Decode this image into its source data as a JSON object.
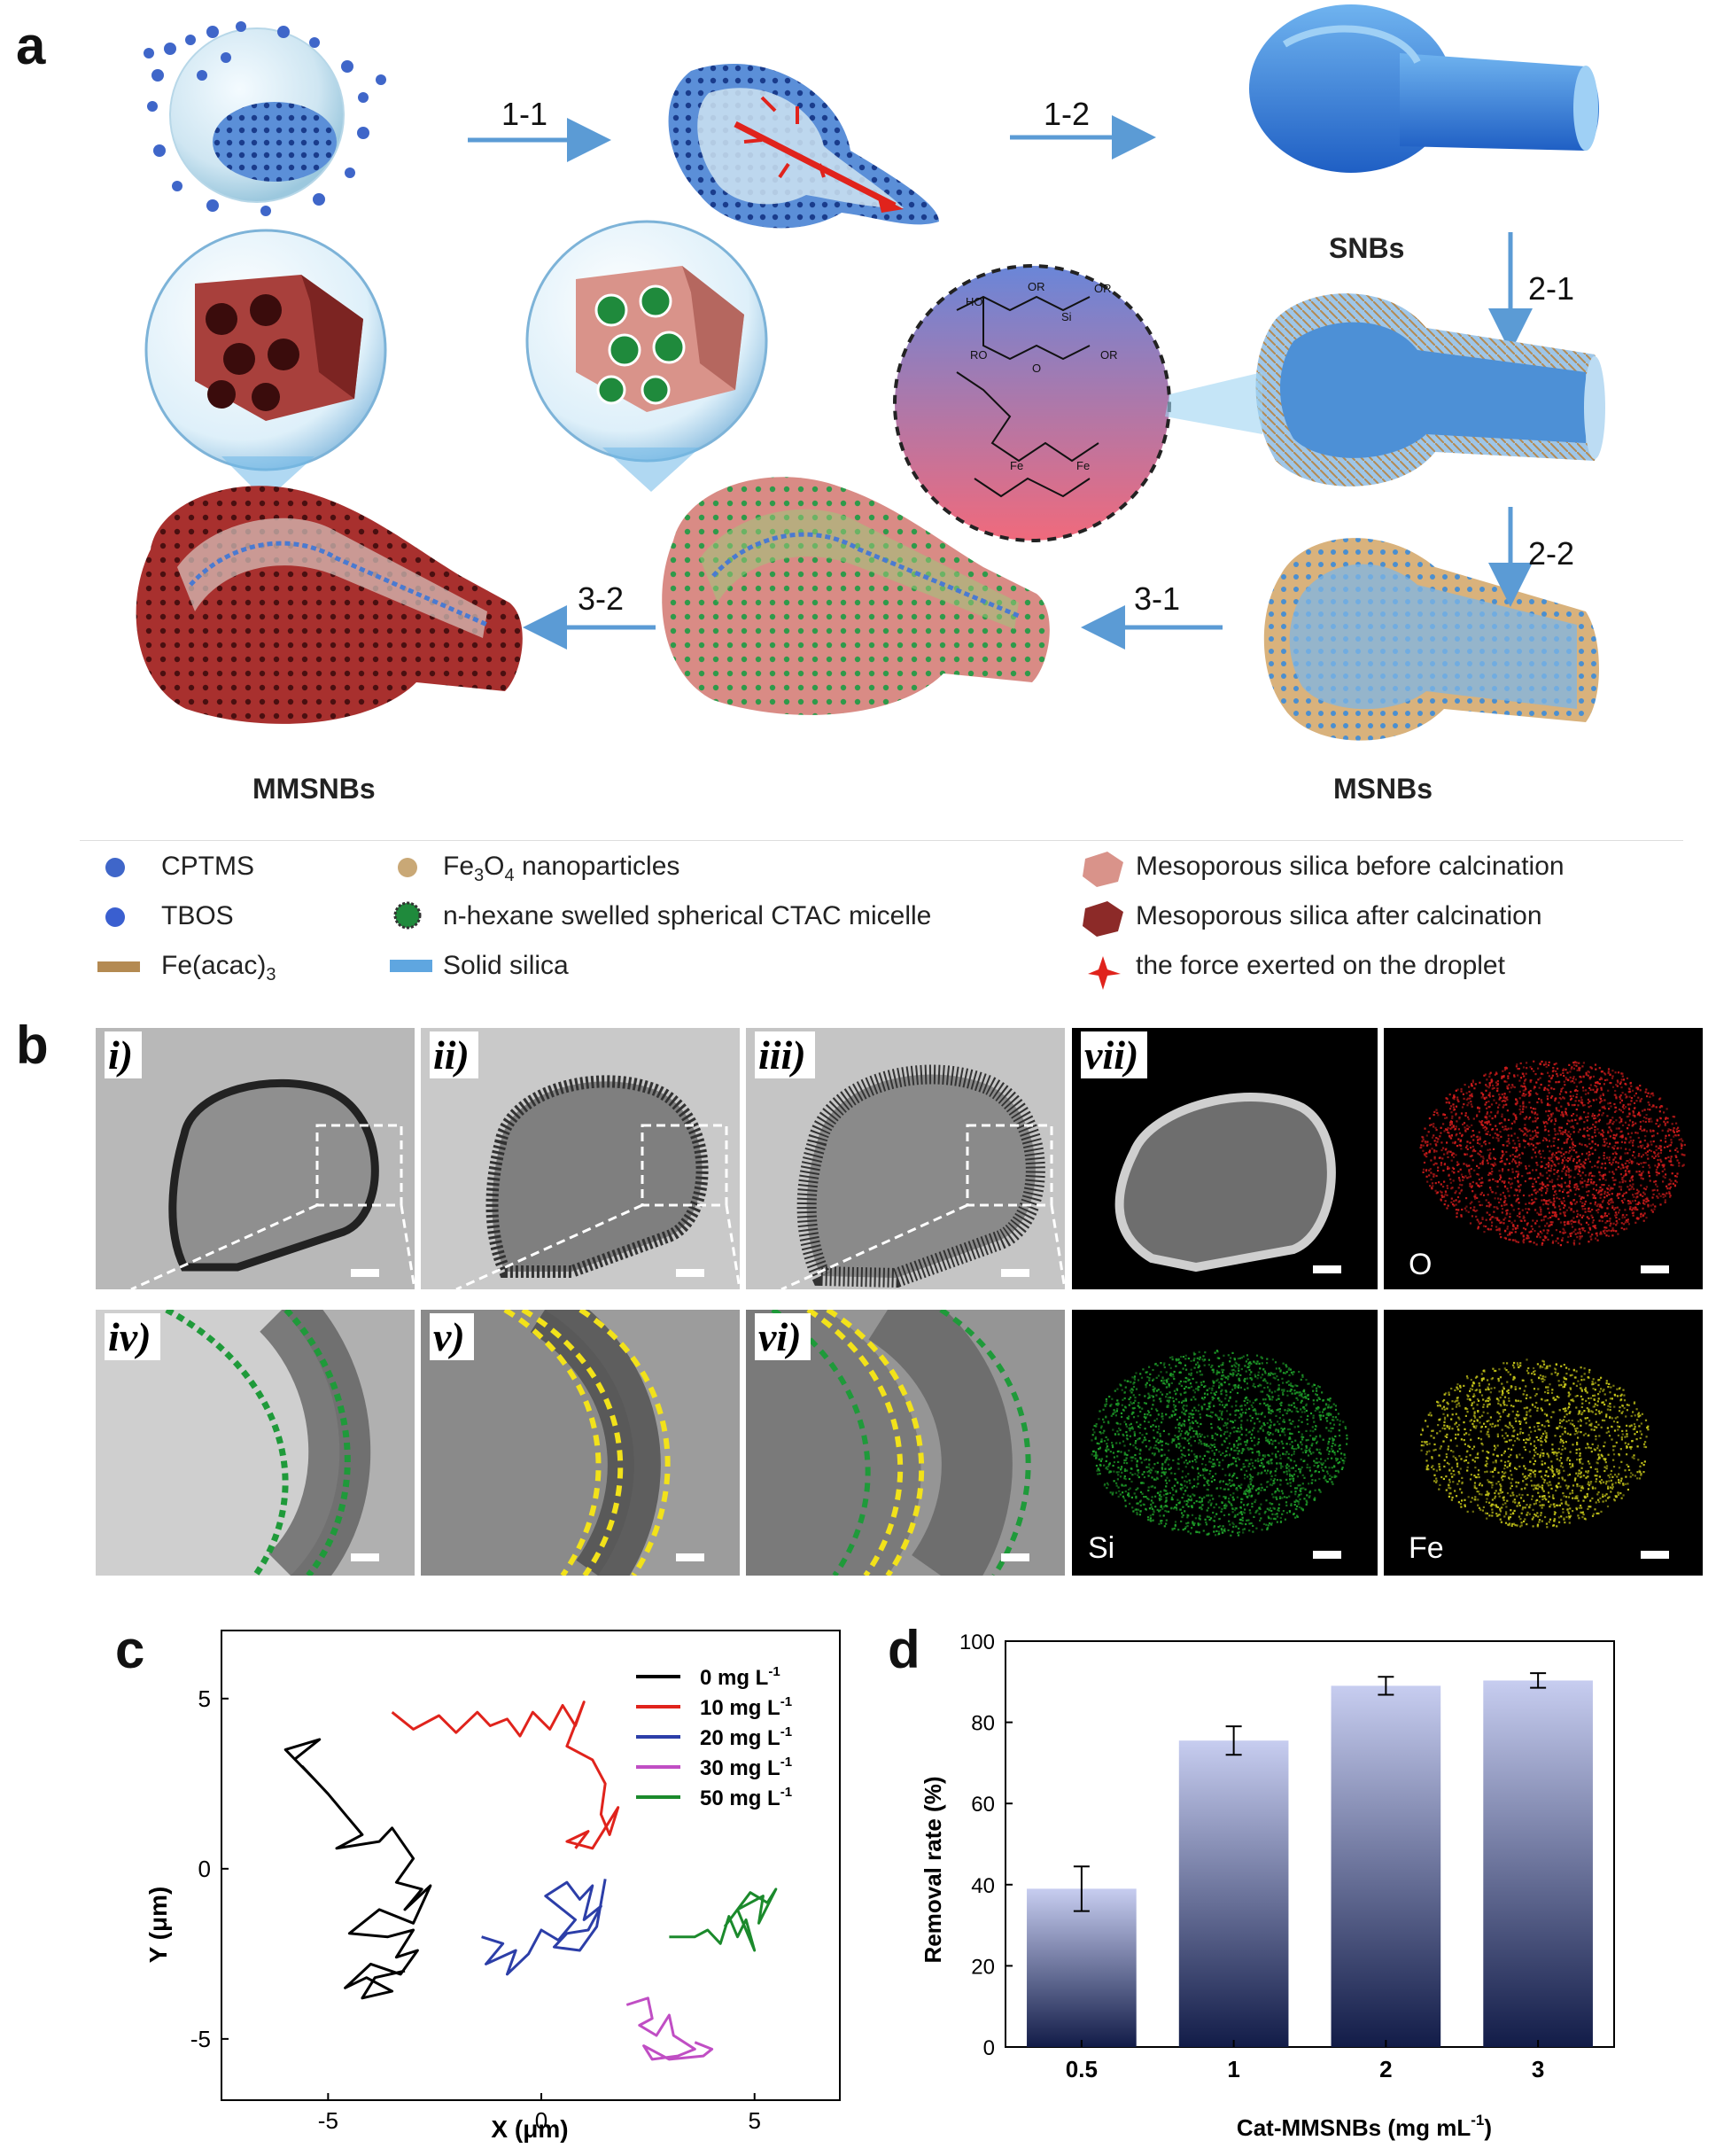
{
  "panels": {
    "a": "a",
    "b": "b",
    "c": "c",
    "d": "d"
  },
  "panel_a": {
    "steps": {
      "s11": "1-1",
      "s12": "1-2",
      "s21": "2-1",
      "s22": "2-2",
      "s31": "3-1",
      "s32": "3-2"
    },
    "labels": {
      "snbs": "SNBs",
      "msnbs": "MSNBs",
      "mmsnbs": "MMSNBs"
    },
    "chem": {
      "ho": "HO",
      "or": "OR",
      "si": "Si",
      "ro": "RO",
      "o": "O",
      "fe": "Fe"
    },
    "legend": {
      "cptms": "CPTMS",
      "tbos": "TBOS",
      "feacac": "Fe(acac)",
      "feacac_sub": "3",
      "fe3o4_pre": "Fe",
      "fe3o4_sub1": "3",
      "fe3o4_mid": "O",
      "fe3o4_sub2": "4",
      "fe3o4_post": " nanoparticles",
      "micelle": "n-hexane swelled spherical CTAC micelle",
      "solid_silica": "Solid silica",
      "before": "Mesoporous silica before calcination",
      "after": "Mesoporous silica after calcination",
      "force": "the force exerted on the droplet"
    },
    "colors": {
      "arrow": "#5b9bd5",
      "silica_blue": "#2e6fd0",
      "red_shell": "#a8302e",
      "pink_shell": "#d98b85",
      "tan_shell": "#d9b27c"
    }
  },
  "panel_b": {
    "tiles": {
      "i": "i)",
      "ii": "ii)",
      "iii": "iii)",
      "iv": "iv)",
      "v": "v)",
      "vi": "vi)",
      "vii": "vii)"
    },
    "maps": {
      "o": "O",
      "si": "Si",
      "fe": "Fe"
    },
    "colors": {
      "o": "#d01c1c",
      "si": "#1fa12a",
      "fe": "#c8c81a",
      "dash_green": "#1f9a3a",
      "dash_yellow": "#f2e21a"
    }
  },
  "panel_c": {
    "chart_data": {
      "type": "line",
      "xlabel": "X (μm)",
      "ylabel": "Y (μm)",
      "xlim": [
        -7.5,
        7.0
      ],
      "ylim": [
        -6.8,
        7.0
      ],
      "xticks": [
        -5,
        0,
        5
      ],
      "yticks": [
        5,
        0,
        -5
      ],
      "legend_position": "top-right",
      "series": [
        {
          "name": "0 mg L",
          "sup": "-1",
          "color": "#000000",
          "points": [
            [
              -5.8,
              3.2
            ],
            [
              -5.2,
              3.8
            ],
            [
              -6.0,
              3.5
            ],
            [
              -5.3,
              2.6
            ],
            [
              -5.6,
              3.0
            ],
            [
              -5.0,
              2.2
            ],
            [
              -4.6,
              1.6
            ],
            [
              -4.2,
              1.0
            ],
            [
              -4.8,
              0.6
            ],
            [
              -3.8,
              0.8
            ],
            [
              -3.5,
              1.2
            ],
            [
              -3.0,
              0.3
            ],
            [
              -3.4,
              -0.4
            ],
            [
              -2.8,
              -0.6
            ],
            [
              -3.2,
              -1.2
            ],
            [
              -2.6,
              -0.5
            ],
            [
              -3.0,
              -1.6
            ],
            [
              -3.8,
              -1.2
            ],
            [
              -4.5,
              -1.9
            ],
            [
              -3.6,
              -2.0
            ],
            [
              -3.0,
              -1.8
            ],
            [
              -3.4,
              -2.6
            ],
            [
              -2.9,
              -2.4
            ],
            [
              -3.3,
              -3.1
            ],
            [
              -4.0,
              -2.8
            ],
            [
              -4.6,
              -3.5
            ],
            [
              -4.1,
              -3.2
            ],
            [
              -3.5,
              -3.6
            ],
            [
              -4.2,
              -3.8
            ],
            [
              -3.9,
              -3.2
            ],
            [
              -3.2,
              -3.0
            ]
          ]
        },
        {
          "name": "10 mg L",
          "sup": "-1",
          "color": "#e0231c",
          "points": [
            [
              -3.5,
              4.6
            ],
            [
              -3.0,
              4.1
            ],
            [
              -2.4,
              4.5
            ],
            [
              -2.0,
              4.0
            ],
            [
              -1.5,
              4.6
            ],
            [
              -1.2,
              4.2
            ],
            [
              -0.8,
              4.4
            ],
            [
              -0.5,
              3.9
            ],
            [
              -0.2,
              4.6
            ],
            [
              0.2,
              4.1
            ],
            [
              0.5,
              4.8
            ],
            [
              0.8,
              4.2
            ],
            [
              1.0,
              4.9
            ],
            [
              0.6,
              3.6
            ],
            [
              1.2,
              3.2
            ],
            [
              1.5,
              2.5
            ],
            [
              1.4,
              1.6
            ],
            [
              1.6,
              1.0
            ],
            [
              1.8,
              1.8
            ],
            [
              1.2,
              0.6
            ],
            [
              0.6,
              0.8
            ],
            [
              1.1,
              1.1
            ],
            [
              0.8,
              0.6
            ]
          ]
        },
        {
          "name": "20 mg L",
          "sup": "-1",
          "color": "#2c3ea8",
          "points": [
            [
              -1.4,
              -2.0
            ],
            [
              -0.9,
              -2.2
            ],
            [
              -1.3,
              -2.8
            ],
            [
              -0.6,
              -2.4
            ],
            [
              -0.8,
              -3.1
            ],
            [
              -0.3,
              -2.5
            ],
            [
              0.0,
              -1.8
            ],
            [
              0.4,
              -2.1
            ],
            [
              0.8,
              -1.5
            ],
            [
              0.5,
              -1.2
            ],
            [
              0.1,
              -0.8
            ],
            [
              0.6,
              -0.4
            ],
            [
              0.9,
              -0.9
            ],
            [
              1.2,
              -0.5
            ],
            [
              1.0,
              -1.5
            ],
            [
              1.4,
              -1.1
            ],
            [
              1.1,
              -1.8
            ],
            [
              0.6,
              -1.9
            ],
            [
              0.3,
              -2.3
            ],
            [
              0.9,
              -2.4
            ],
            [
              1.3,
              -1.7
            ],
            [
              1.5,
              -0.3
            ]
          ]
        },
        {
          "name": "30 mg L",
          "sup": "-1",
          "color": "#c04ec4",
          "points": [
            [
              2.0,
              -4.0
            ],
            [
              2.5,
              -3.8
            ],
            [
              2.6,
              -4.4
            ],
            [
              2.3,
              -4.6
            ],
            [
              2.7,
              -4.9
            ],
            [
              3.0,
              -4.3
            ],
            [
              3.1,
              -4.9
            ],
            [
              3.6,
              -5.3
            ],
            [
              3.2,
              -5.5
            ],
            [
              2.6,
              -5.6
            ],
            [
              2.4,
              -5.2
            ],
            [
              3.0,
              -5.6
            ],
            [
              3.8,
              -5.5
            ],
            [
              4.0,
              -5.3
            ],
            [
              3.6,
              -5.1
            ]
          ]
        },
        {
          "name": "50 mg L",
          "sup": "-1",
          "color": "#1b8a2c",
          "points": [
            [
              3.0,
              -2.0
            ],
            [
              3.6,
              -2.0
            ],
            [
              3.9,
              -1.8
            ],
            [
              4.2,
              -2.2
            ],
            [
              4.4,
              -1.4
            ],
            [
              4.6,
              -2.0
            ],
            [
              4.8,
              -1.5
            ],
            [
              5.0,
              -2.4
            ],
            [
              4.6,
              -1.2
            ],
            [
              5.2,
              -0.8
            ],
            [
              5.1,
              -1.6
            ],
            [
              5.5,
              -0.6
            ],
            [
              5.3,
              -1.0
            ],
            [
              4.9,
              -0.7
            ],
            [
              4.3,
              -1.7
            ]
          ]
        }
      ]
    }
  },
  "panel_d": {
    "chart_data": {
      "type": "bar",
      "categories": [
        "0.5",
        "1",
        "2",
        "3"
      ],
      "values": [
        39,
        75.5,
        89,
        90.3
      ],
      "errors": [
        5.5,
        3.5,
        2.2,
        1.8
      ],
      "xlabel": "Cat-MMSNBs (mg mL",
      "xlabel_sup": "-1",
      "xlabel_close": ")",
      "ylabel": "Removal rate (%)",
      "ylim": [
        0,
        100
      ],
      "yticks": [
        0,
        20,
        40,
        60,
        80,
        100
      ],
      "bar_gradient": [
        "#c7cdf0",
        "#121c48"
      ]
    }
  }
}
